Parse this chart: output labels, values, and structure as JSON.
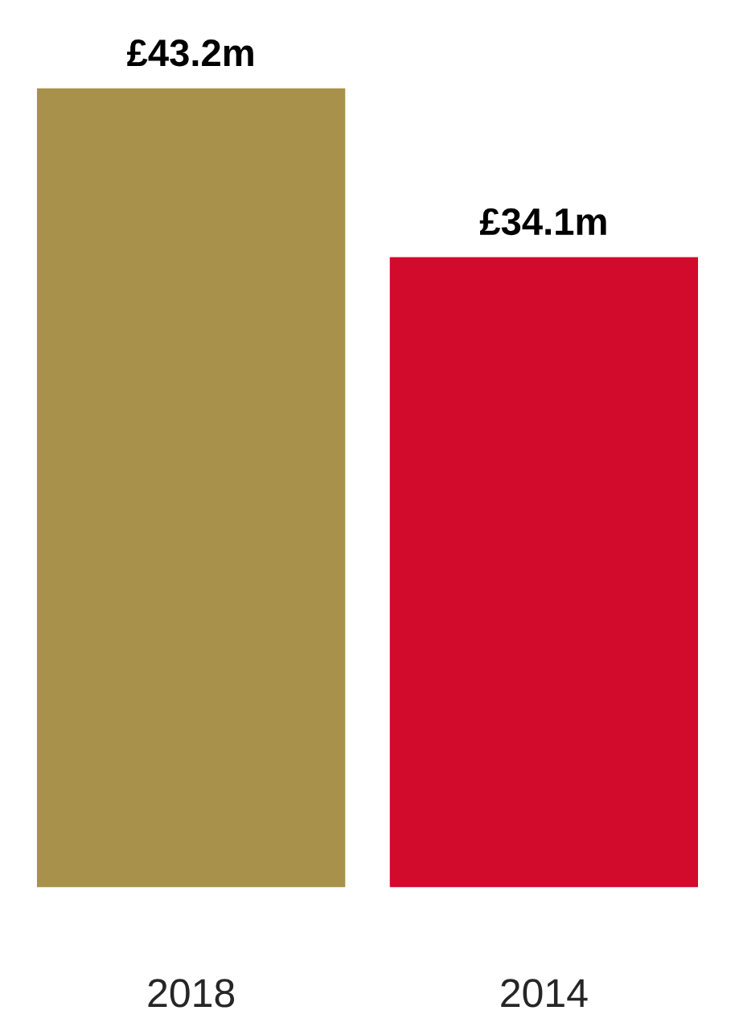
{
  "chart_data": {
    "type": "bar",
    "categories": [
      "2018",
      "2014"
    ],
    "values": [
      43.2,
      34.1
    ],
    "colors": [
      "#a8914a",
      "#d20a2c"
    ],
    "value_labels": [
      "£43.2m",
      "£34.1m"
    ]
  }
}
